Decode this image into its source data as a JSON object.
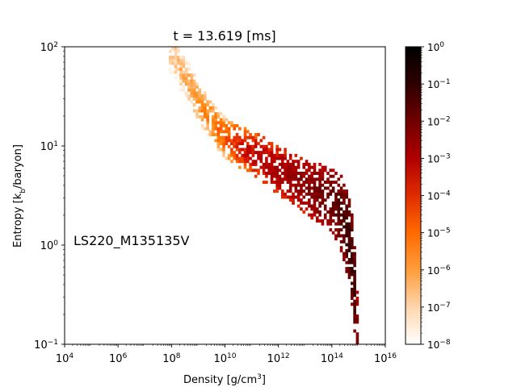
{
  "chart_data": {
    "type": "heatmap",
    "title": "t = 13.619 [ms]",
    "annotation": "LS220_M135135V",
    "xlabel": "Density [g/cm^3]",
    "ylabel": "Entropy [k_b/baryon]",
    "xscale": "log",
    "yscale": "log",
    "xlim": [
      10000,
      1e+16
    ],
    "ylim": [
      0.1,
      100
    ],
    "x_tick_labels": [
      {
        "base": "10",
        "exp": "4"
      },
      {
        "base": "10",
        "exp": "6"
      },
      {
        "base": "10",
        "exp": "8"
      },
      {
        "base": "10",
        "exp": "10"
      },
      {
        "base": "10",
        "exp": "12"
      },
      {
        "base": "10",
        "exp": "14"
      },
      {
        "base": "10",
        "exp": "16"
      }
    ],
    "y_tick_labels": [
      {
        "base": "10",
        "exp": "−1"
      },
      {
        "base": "10",
        "exp": "0"
      },
      {
        "base": "10",
        "exp": "1"
      },
      {
        "base": "10",
        "exp": "2"
      }
    ],
    "colorbar": {
      "scale": "log",
      "range": [
        1e-08,
        1
      ],
      "colormap": "gist_heat_r",
      "tick_labels": [
        {
          "base": "10",
          "exp": "−8"
        },
        {
          "base": "10",
          "exp": "−7"
        },
        {
          "base": "10",
          "exp": "−6"
        },
        {
          "base": "10",
          "exp": "−5"
        },
        {
          "base": "10",
          "exp": "−4"
        },
        {
          "base": "10",
          "exp": "−3"
        },
        {
          "base": "10",
          "exp": "−2"
        },
        {
          "base": "10",
          "exp": "−1"
        },
        {
          "base": "10",
          "exp": "0"
        }
      ]
    },
    "ridge": [
      {
        "log_rho": 8.0,
        "log_s": 1.95,
        "log_w": -7.2
      },
      {
        "log_rho": 8.5,
        "log_s": 1.7,
        "log_w": -6.8
      },
      {
        "log_rho": 9.0,
        "log_s": 1.45,
        "log_w": -6.4
      },
      {
        "log_rho": 9.5,
        "log_s": 1.25,
        "log_w": -6.0
      },
      {
        "log_rho": 10.0,
        "log_s": 1.08,
        "log_w": -5.4
      },
      {
        "log_rho": 10.5,
        "log_s": 1.0,
        "log_w": -4.6
      },
      {
        "log_rho": 11.0,
        "log_s": 0.93,
        "log_w": -4.0
      },
      {
        "log_rho": 11.5,
        "log_s": 0.85,
        "log_w": -3.7
      },
      {
        "log_rho": 12.0,
        "log_s": 0.75,
        "log_w": -3.4
      },
      {
        "log_rho": 12.5,
        "log_s": 0.68,
        "log_w": -3.1
      },
      {
        "log_rho": 13.0,
        "log_s": 0.6,
        "log_w": -2.8
      },
      {
        "log_rho": 13.5,
        "log_s": 0.52,
        "log_w": -2.5
      },
      {
        "log_rho": 14.0,
        "log_s": 0.45,
        "log_w": -2.1
      },
      {
        "log_rho": 14.4,
        "log_s": 0.3,
        "log_w": -1.7
      },
      {
        "log_rho": 14.7,
        "log_s": 0.0,
        "log_w": -1.2
      },
      {
        "log_rho": 14.85,
        "log_s": -0.45,
        "log_w": -1.4
      },
      {
        "log_rho": 14.9,
        "log_s": -0.95,
        "log_w": -2.2
      }
    ],
    "width_dex": [
      {
        "log_rho": 8.0,
        "half_width_log_s": 0.25
      },
      {
        "log_rho": 10.0,
        "half_width_log_s": 0.2
      },
      {
        "log_rho": 12.0,
        "half_width_log_s": 0.24
      },
      {
        "log_rho": 14.0,
        "half_width_log_s": 0.32
      },
      {
        "log_rho": 14.9,
        "half_width_log_s": 0.5
      }
    ]
  }
}
